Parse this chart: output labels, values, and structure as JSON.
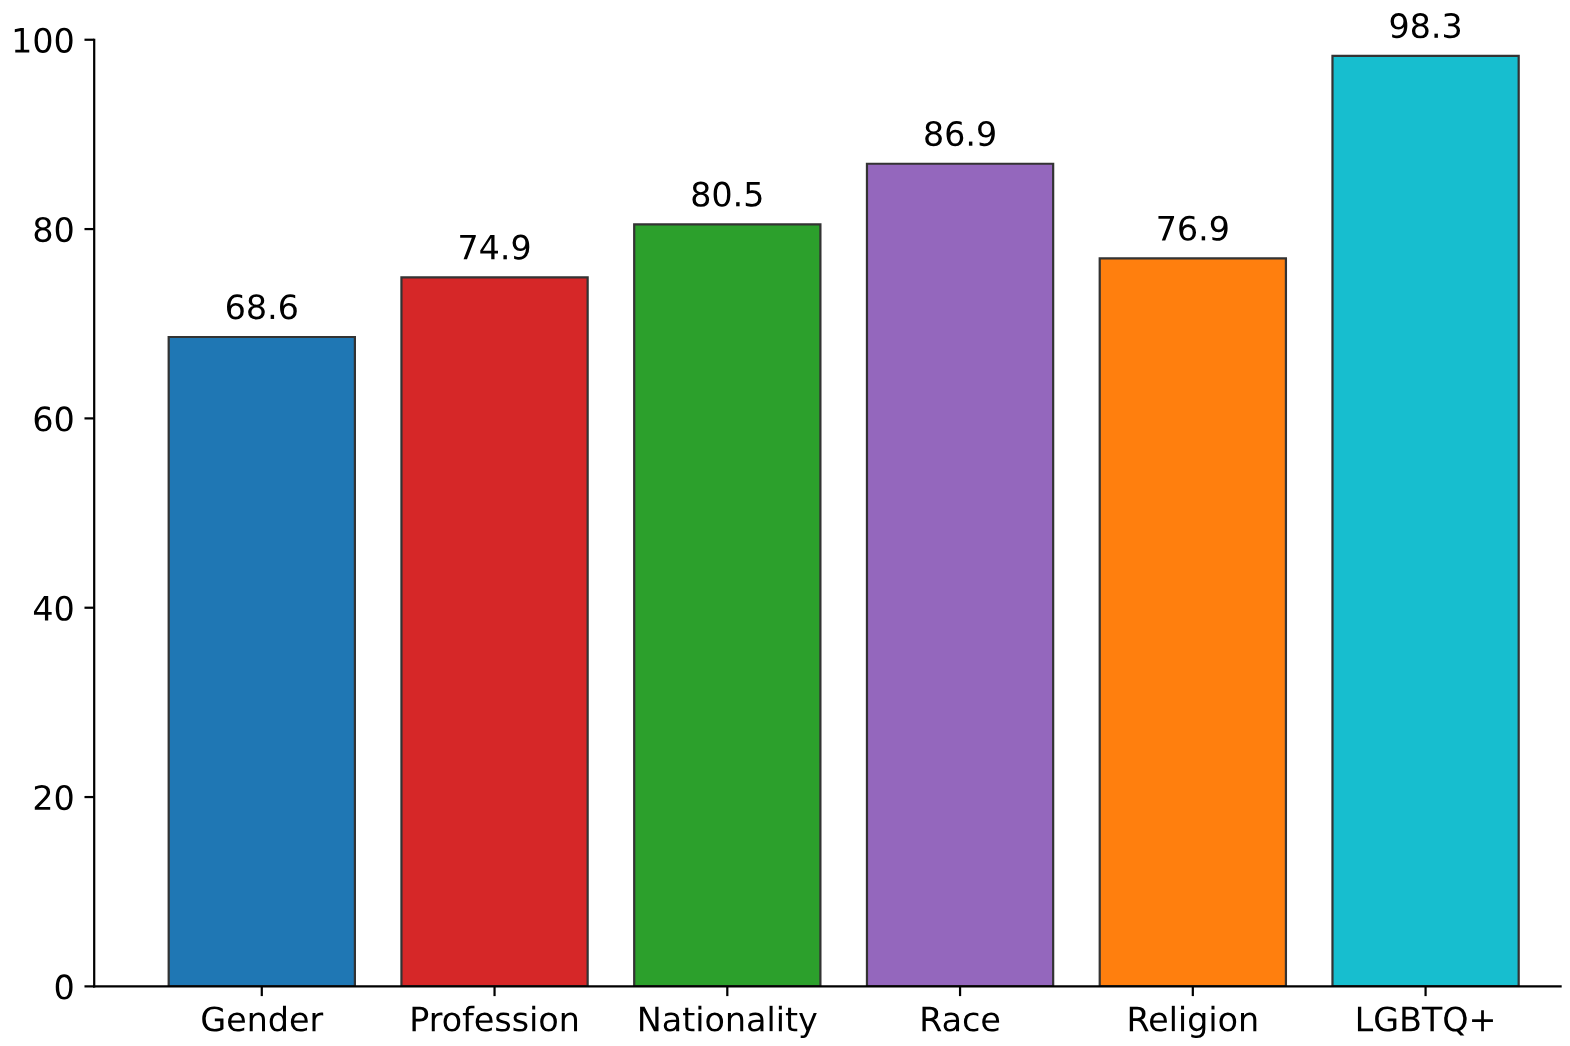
{
  "chart_data": {
    "type": "bar",
    "categories": [
      "Gender",
      "Profession",
      "Nationality",
      "Race",
      "Religion",
      "LGBTQ+"
    ],
    "values": [
      68.6,
      74.9,
      80.5,
      86.9,
      76.9,
      98.3
    ],
    "colors": [
      "#1f77b4",
      "#d62728",
      "#2ca02c",
      "#9467bd",
      "#ff7f0e",
      "#17becf"
    ],
    "ylim": [
      0,
      100
    ],
    "yticks": [
      0,
      20,
      40,
      60,
      80,
      100
    ],
    "data_labels": true,
    "grid": false,
    "legend": false
  }
}
